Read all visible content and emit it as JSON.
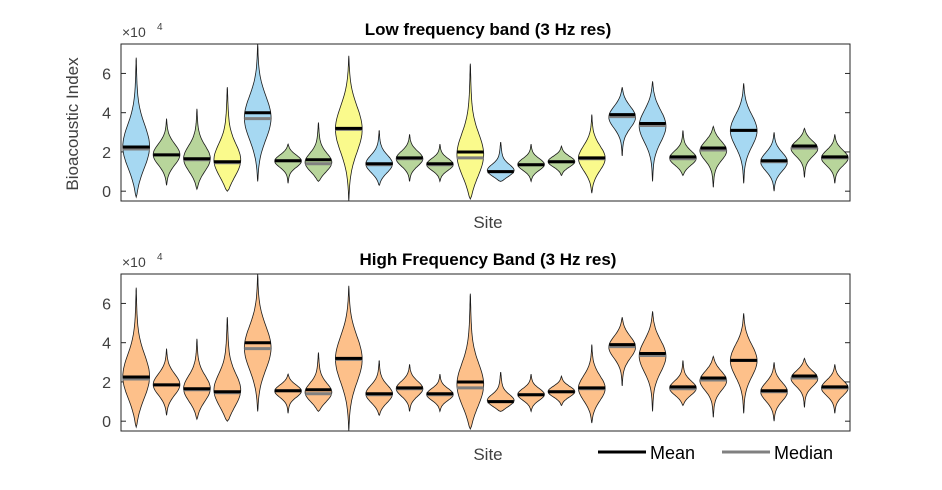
{
  "legend": {
    "mean_label": "Mean",
    "median_label": "Median",
    "mean_color": "#000000",
    "median_color": "#808080"
  },
  "chart_data": [
    {
      "type": "violin",
      "title": "Low frequency band (3 Hz res)",
      "xlabel": "Site",
      "ylabel": "Bioacoustic Index",
      "exponent_label": "×10",
      "exponent": "4",
      "ylim": [
        -0.5,
        7.5
      ],
      "yticks": [
        0,
        2,
        4,
        6
      ],
      "grid": false,
      "legend_position": "none",
      "series": [
        {
          "min": -0.3,
          "max": 6.8,
          "mean": 2.25,
          "median": 2.15,
          "color": "#a6d8f2"
        },
        {
          "min": 0.3,
          "max": 3.7,
          "mean": 1.85,
          "median": 1.85,
          "color": "#b8d59b"
        },
        {
          "min": 0.1,
          "max": 4.2,
          "mean": 1.65,
          "median": 1.6,
          "color": "#b8d59b"
        },
        {
          "min": 0.0,
          "max": 5.3,
          "mean": 1.5,
          "median": 1.45,
          "color": "#fafa8c"
        },
        {
          "min": 0.5,
          "max": 7.5,
          "mean": 4.0,
          "median": 3.7,
          "color": "#a6d8f2"
        },
        {
          "min": 0.4,
          "max": 2.4,
          "mean": 1.55,
          "median": 1.55,
          "color": "#b8d59b"
        },
        {
          "min": 0.5,
          "max": 3.5,
          "mean": 1.6,
          "median": 1.4,
          "color": "#b8d59b"
        },
        {
          "min": -0.5,
          "max": 6.9,
          "mean": 3.2,
          "median": 3.15,
          "color": "#fafa8c"
        },
        {
          "min": 0.3,
          "max": 3.1,
          "mean": 1.4,
          "median": 1.35,
          "color": "#a6d8f2"
        },
        {
          "min": 0.5,
          "max": 2.9,
          "mean": 1.7,
          "median": 1.65,
          "color": "#b8d59b"
        },
        {
          "min": 0.5,
          "max": 2.4,
          "mean": 1.4,
          "median": 1.35,
          "color": "#b8d59b"
        },
        {
          "min": -0.4,
          "max": 6.5,
          "mean": 2.0,
          "median": 1.7,
          "color": "#fafa8c"
        },
        {
          "min": 0.5,
          "max": 2.5,
          "mean": 1.0,
          "median": 1.0,
          "color": "#a6d8f2"
        },
        {
          "min": 0.5,
          "max": 2.4,
          "mean": 1.35,
          "median": 1.35,
          "color": "#b8d59b"
        },
        {
          "min": 0.8,
          "max": 2.3,
          "mean": 1.5,
          "median": 1.5,
          "color": "#b8d59b"
        },
        {
          "min": -0.1,
          "max": 3.9,
          "mean": 1.7,
          "median": 1.65,
          "color": "#fafa8c"
        },
        {
          "min": 1.8,
          "max": 5.3,
          "mean": 3.9,
          "median": 3.8,
          "color": "#a6d8f2"
        },
        {
          "min": 0.5,
          "max": 5.6,
          "mean": 3.45,
          "median": 3.35,
          "color": "#a6d8f2"
        },
        {
          "min": 0.8,
          "max": 3.1,
          "mean": 1.75,
          "median": 1.65,
          "color": "#b8d59b"
        },
        {
          "min": 0.2,
          "max": 3.3,
          "mean": 2.2,
          "median": 2.1,
          "color": "#b8d59b"
        },
        {
          "min": 0.4,
          "max": 5.5,
          "mean": 3.1,
          "median": 3.1,
          "color": "#a6d8f2"
        },
        {
          "min": 0.0,
          "max": 3.0,
          "mean": 1.55,
          "median": 1.5,
          "color": "#a6d8f2"
        },
        {
          "min": 0.7,
          "max": 3.2,
          "mean": 2.3,
          "median": 2.2,
          "color": "#b8d59b"
        },
        {
          "min": 0.4,
          "max": 2.9,
          "mean": 1.75,
          "median": 1.7,
          "color": "#b8d59b"
        }
      ]
    },
    {
      "type": "violin",
      "title": "High Frequency Band (3 Hz res)",
      "xlabel": "Site",
      "ylabel": "",
      "exponent_label": "×10",
      "exponent": "4",
      "ylim": [
        -0.5,
        7.5
      ],
      "yticks": [
        0,
        2,
        4,
        6
      ],
      "grid": false,
      "legend_position": "bottom-right",
      "series": [
        {
          "min": -0.3,
          "max": 6.8,
          "mean": 2.25,
          "median": 2.15,
          "color": "#fdc08a"
        },
        {
          "min": 0.3,
          "max": 3.7,
          "mean": 1.85,
          "median": 1.85,
          "color": "#fdc08a"
        },
        {
          "min": 0.1,
          "max": 4.2,
          "mean": 1.65,
          "median": 1.6,
          "color": "#fdc08a"
        },
        {
          "min": 0.0,
          "max": 5.3,
          "mean": 1.5,
          "median": 1.45,
          "color": "#fdc08a"
        },
        {
          "min": 0.5,
          "max": 7.5,
          "mean": 4.0,
          "median": 3.7,
          "color": "#fdc08a"
        },
        {
          "min": 0.4,
          "max": 2.4,
          "mean": 1.55,
          "median": 1.55,
          "color": "#fdc08a"
        },
        {
          "min": 0.5,
          "max": 3.5,
          "mean": 1.6,
          "median": 1.4,
          "color": "#fdc08a"
        },
        {
          "min": -0.5,
          "max": 6.9,
          "mean": 3.2,
          "median": 3.15,
          "color": "#fdc08a"
        },
        {
          "min": 0.3,
          "max": 3.1,
          "mean": 1.4,
          "median": 1.35,
          "color": "#fdc08a"
        },
        {
          "min": 0.5,
          "max": 2.9,
          "mean": 1.7,
          "median": 1.65,
          "color": "#fdc08a"
        },
        {
          "min": 0.5,
          "max": 2.4,
          "mean": 1.4,
          "median": 1.35,
          "color": "#fdc08a"
        },
        {
          "min": -0.4,
          "max": 6.5,
          "mean": 2.0,
          "median": 1.7,
          "color": "#fdc08a"
        },
        {
          "min": 0.5,
          "max": 2.5,
          "mean": 1.0,
          "median": 1.0,
          "color": "#fdc08a"
        },
        {
          "min": 0.5,
          "max": 2.4,
          "mean": 1.35,
          "median": 1.35,
          "color": "#fdc08a"
        },
        {
          "min": 0.8,
          "max": 2.3,
          "mean": 1.5,
          "median": 1.5,
          "color": "#fdc08a"
        },
        {
          "min": -0.1,
          "max": 3.9,
          "mean": 1.7,
          "median": 1.65,
          "color": "#fdc08a"
        },
        {
          "min": 1.8,
          "max": 5.3,
          "mean": 3.9,
          "median": 3.8,
          "color": "#fdc08a"
        },
        {
          "min": 0.5,
          "max": 5.6,
          "mean": 3.45,
          "median": 3.35,
          "color": "#fdc08a"
        },
        {
          "min": 0.8,
          "max": 3.1,
          "mean": 1.75,
          "median": 1.65,
          "color": "#fdc08a"
        },
        {
          "min": 0.2,
          "max": 3.3,
          "mean": 2.2,
          "median": 2.1,
          "color": "#fdc08a"
        },
        {
          "min": 0.4,
          "max": 5.5,
          "mean": 3.1,
          "median": 3.1,
          "color": "#fdc08a"
        },
        {
          "min": 0.0,
          "max": 3.0,
          "mean": 1.55,
          "median": 1.5,
          "color": "#fdc08a"
        },
        {
          "min": 0.7,
          "max": 3.2,
          "mean": 2.3,
          "median": 2.2,
          "color": "#fdc08a"
        },
        {
          "min": 0.4,
          "max": 2.9,
          "mean": 1.75,
          "median": 1.7,
          "color": "#fdc08a"
        }
      ]
    }
  ]
}
